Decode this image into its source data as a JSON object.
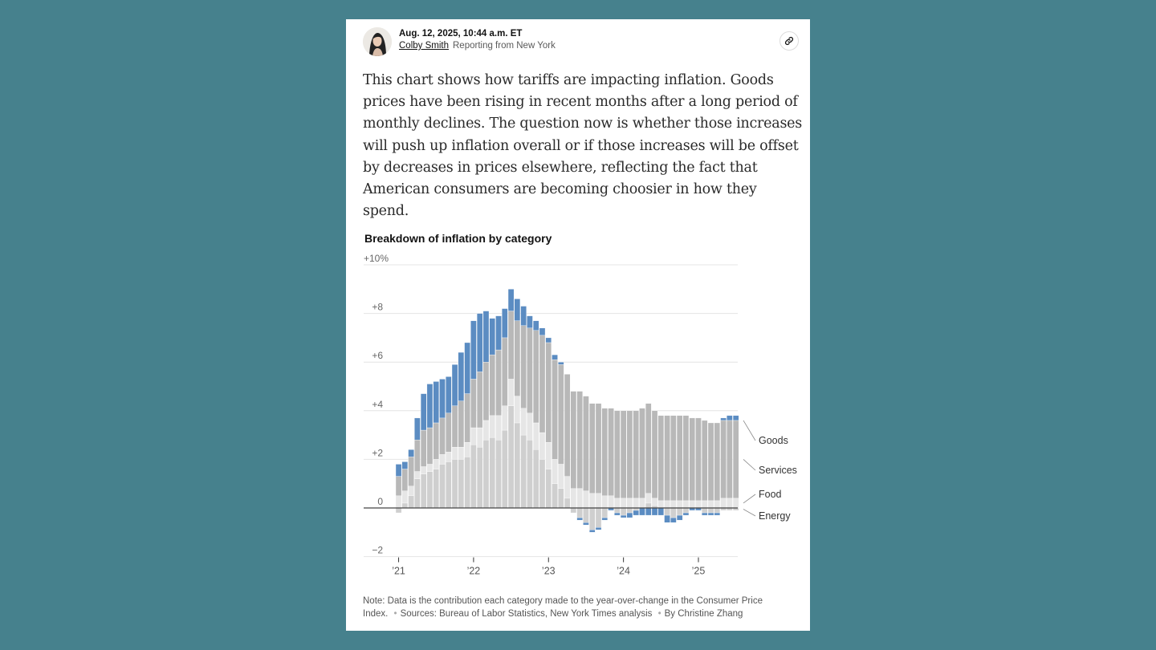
{
  "byline": {
    "date": "Aug. 12, 2025, 10:44 a.m. ET",
    "author": "Colby Smith",
    "location": "Reporting from New York"
  },
  "icons": {
    "avatar": "author-avatar",
    "link": "link-icon"
  },
  "body_text": "This chart shows how tariffs are impacting inflation. Goods prices have been rising in recent months after a long period of monthly declines. The question now is whether those increases will push up inflation overall or if those increases will be offset by decreases in prices elsewhere, reflecting the fact that American consumers are becoming choosier in how they spend.",
  "colors": {
    "goods": "#5b8cc2",
    "services": "#b8b8b8",
    "food": "#e6e6e6",
    "energy": "#cfcfcf",
    "background": "#46818d"
  },
  "chart_data": {
    "type": "bar",
    "stacked": true,
    "title": "Breakdown of inflation by category",
    "y_ticks": [
      {
        "value": 10,
        "label": "+10%"
      },
      {
        "value": 8,
        "label": "+8"
      },
      {
        "value": 6,
        "label": "+6"
      },
      {
        "value": 4,
        "label": "+4"
      },
      {
        "value": 2,
        "label": "+2"
      },
      {
        "value": 0,
        "label": "0"
      },
      {
        "value": -2,
        "label": "−2"
      }
    ],
    "ylim": [
      -2,
      10
    ],
    "x_ticks": [
      {
        "index": 0,
        "label": "’21"
      },
      {
        "index": 12,
        "label": "’22"
      },
      {
        "index": 24,
        "label": "’23"
      },
      {
        "index": 36,
        "label": "’24"
      },
      {
        "index": 48,
        "label": "’25"
      }
    ],
    "legend": [
      "Goods",
      "Services",
      "Food",
      "Energy"
    ],
    "series": [
      {
        "name": "Energy",
        "values": [
          -0.2,
          0.2,
          0.5,
          1.2,
          1.4,
          1.5,
          1.6,
          1.8,
          1.9,
          2.0,
          2.0,
          2.1,
          2.6,
          2.5,
          2.8,
          2.9,
          2.8,
          3.2,
          4.2,
          3.5,
          3.0,
          2.8,
          2.4,
          2.0,
          1.6,
          1.0,
          0.8,
          0.4,
          -0.2,
          -0.4,
          -0.6,
          -0.9,
          -0.8,
          -0.4,
          0.0,
          -0.2,
          -0.3,
          -0.2,
          -0.1,
          0.0,
          0.2,
          0.1,
          0.0,
          -0.3,
          -0.4,
          -0.3,
          -0.2,
          0.0,
          0.0,
          -0.2,
          -0.2,
          -0.2,
          -0.1,
          -0.1,
          -0.1
        ]
      },
      {
        "name": "Food",
        "values": [
          0.5,
          0.5,
          0.4,
          0.3,
          0.3,
          0.3,
          0.4,
          0.4,
          0.4,
          0.5,
          0.5,
          0.6,
          0.7,
          0.8,
          0.8,
          0.9,
          1.0,
          1.0,
          1.1,
          1.1,
          1.1,
          1.1,
          1.1,
          1.1,
          1.1,
          1.0,
          1.0,
          0.9,
          0.8,
          0.8,
          0.7,
          0.6,
          0.6,
          0.5,
          0.5,
          0.4,
          0.4,
          0.4,
          0.4,
          0.4,
          0.4,
          0.3,
          0.3,
          0.3,
          0.3,
          0.3,
          0.3,
          0.3,
          0.3,
          0.3,
          0.3,
          0.3,
          0.4,
          0.4,
          0.4
        ]
      },
      {
        "name": "Services",
        "values": [
          0.8,
          0.9,
          1.2,
          1.3,
          1.5,
          1.5,
          1.5,
          1.5,
          1.6,
          1.7,
          1.9,
          2.0,
          2.0,
          2.3,
          2.4,
          2.5,
          2.7,
          2.8,
          2.8,
          3.1,
          3.4,
          3.5,
          3.8,
          4.0,
          4.1,
          4.1,
          4.1,
          4.2,
          4.0,
          4.0,
          3.9,
          3.7,
          3.7,
          3.6,
          3.6,
          3.6,
          3.6,
          3.6,
          3.6,
          3.7,
          3.7,
          3.6,
          3.5,
          3.5,
          3.5,
          3.5,
          3.5,
          3.4,
          3.4,
          3.3,
          3.2,
          3.2,
          3.2,
          3.2,
          3.2
        ]
      },
      {
        "name": "Goods",
        "values": [
          0.5,
          0.3,
          0.3,
          0.9,
          1.5,
          1.8,
          1.7,
          1.6,
          1.5,
          1.7,
          2.0,
          2.1,
          2.4,
          2.4,
          2.1,
          1.5,
          1.4,
          1.2,
          0.9,
          0.9,
          0.8,
          0.5,
          0.4,
          0.3,
          0.2,
          0.2,
          0.1,
          0.0,
          0.0,
          -0.1,
          -0.1,
          -0.1,
          -0.1,
          -0.1,
          -0.1,
          -0.1,
          -0.1,
          -0.2,
          -0.2,
          -0.3,
          -0.3,
          -0.3,
          -0.3,
          -0.3,
          -0.2,
          -0.2,
          -0.1,
          -0.1,
          -0.1,
          -0.1,
          -0.1,
          -0.1,
          0.1,
          0.2,
          0.2
        ]
      }
    ]
  },
  "note": {
    "text": "Note: Data is the contribution each category made to the year-over-change in the Consumer Price Index.",
    "sources": "Sources: Bureau of Labor Statistics, New York Times analysis",
    "credit": "By Christine Zhang",
    "separator": "•"
  }
}
